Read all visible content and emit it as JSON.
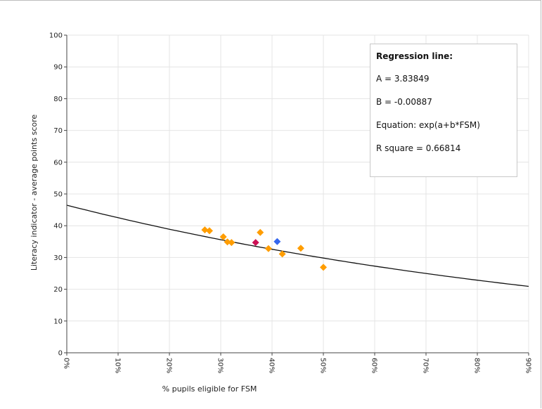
{
  "chart_data": {
    "type": "scatter",
    "title": "",
    "xlabel": "% pupils eligible for FSM",
    "ylabel": "Literacy indicator - average points score",
    "xlim": [
      0,
      90
    ],
    "ylim": [
      0,
      100
    ],
    "x_ticks": [
      0,
      10,
      20,
      30,
      40,
      50,
      60,
      70,
      80,
      90
    ],
    "x_tick_labels": [
      "0%",
      "10%",
      "20%",
      "30%",
      "40%",
      "50%",
      "60%",
      "70%",
      "80%",
      "90%"
    ],
    "y_ticks": [
      0,
      10,
      20,
      30,
      40,
      50,
      60,
      70,
      80,
      90,
      100
    ],
    "y_tick_labels": [
      "0",
      "10",
      "20",
      "30",
      "40",
      "50",
      "60",
      "70",
      "80",
      "90",
      "100"
    ],
    "grid": true,
    "series": [
      {
        "color": "#ff9d00",
        "marker": "diamond",
        "points": [
          {
            "x": 26.9,
            "y": 38.7
          },
          {
            "x": 27.8,
            "y": 38.4
          },
          {
            "x": 30.5,
            "y": 36.5
          },
          {
            "x": 31.3,
            "y": 34.9
          },
          {
            "x": 32.1,
            "y": 34.7
          },
          {
            "x": 37.7,
            "y": 37.9
          },
          {
            "x": 39.3,
            "y": 32.8
          },
          {
            "x": 42.0,
            "y": 31.1
          },
          {
            "x": 45.6,
            "y": 32.9
          },
          {
            "x": 50.0,
            "y": 26.9
          }
        ]
      },
      {
        "color": "#cc1155",
        "marker": "diamond",
        "points": [
          {
            "x": 36.8,
            "y": 34.7
          }
        ]
      },
      {
        "color": "#3366ee",
        "marker": "diamond",
        "points": [
          {
            "x": 41.0,
            "y": 35.0
          }
        ]
      }
    ],
    "regression": {
      "a": 3.83849,
      "b": -0.00887,
      "scale": 100,
      "color": "#111111"
    },
    "legend": {
      "placement": "top-right",
      "heading": "Regression line:",
      "lines": [
        "A = 3.83849",
        "B = -0.00887",
        "Equation:  exp(a+b*FSM)",
        "R square = 0.66814"
      ]
    }
  }
}
